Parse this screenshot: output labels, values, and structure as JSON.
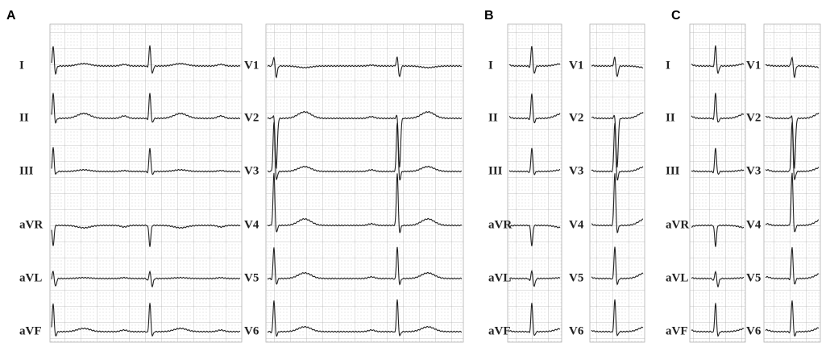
{
  "panels": [
    {
      "label": "A",
      "columns": [
        [
          "I",
          "II",
          "III",
          "aVR",
          "aVL",
          "aVF"
        ],
        [
          "V1",
          "V2",
          "V3",
          "V4",
          "V5",
          "V6"
        ]
      ]
    },
    {
      "label": "B",
      "columns": [
        [
          "I",
          "II",
          "III",
          "aVR",
          "aVL",
          "aVF"
        ],
        [
          "V1",
          "V2",
          "V3",
          "V4",
          "V5",
          "V6"
        ]
      ]
    },
    {
      "label": "C",
      "columns": [
        [
          "I",
          "II",
          "III",
          "aVR",
          "aVL",
          "aVF"
        ],
        [
          "V1",
          "V2",
          "V3",
          "V4",
          "V5",
          "V6"
        ]
      ]
    }
  ]
}
